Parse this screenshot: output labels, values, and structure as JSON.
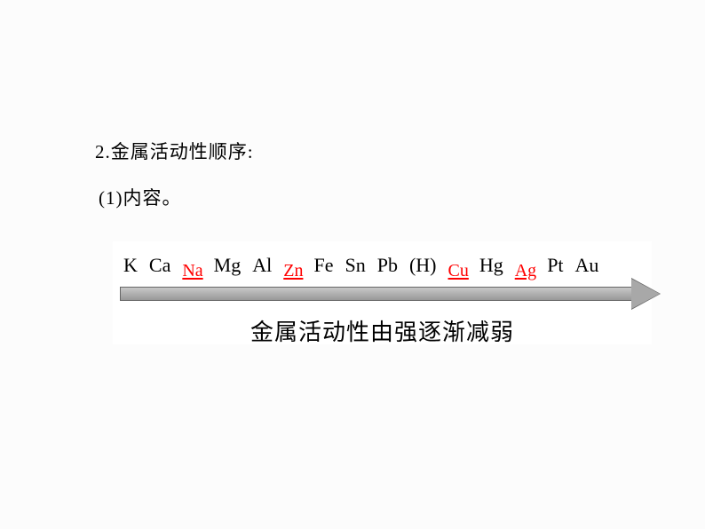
{
  "heading": "2.金属活动性顺序:",
  "subheading": "(1)内容。",
  "elements": {
    "e1": "K",
    "e2": "Ca",
    "e3": "Na",
    "e4": "Mg",
    "e5": "Al",
    "e6": "Zn",
    "e7": "Fe",
    "e8": "Sn",
    "e9": "Pb",
    "e10": "(H)",
    "e11": "Cu",
    "e12": "Hg",
    "e13": "Ag",
    "e14": "Pt",
    "e15": "Au"
  },
  "caption": "金属活动性由强逐渐减弱",
  "colors": {
    "background": "#fcfcfc",
    "text": "#000000",
    "highlight": "#ff0000",
    "arrow_fill": "#a8a8a8",
    "arrow_border": "#666666",
    "diagram_bg": "#ffffff"
  },
  "fonts": {
    "body_size": 21,
    "element_size": 22,
    "highlight_size": 20,
    "caption_size": 26
  }
}
